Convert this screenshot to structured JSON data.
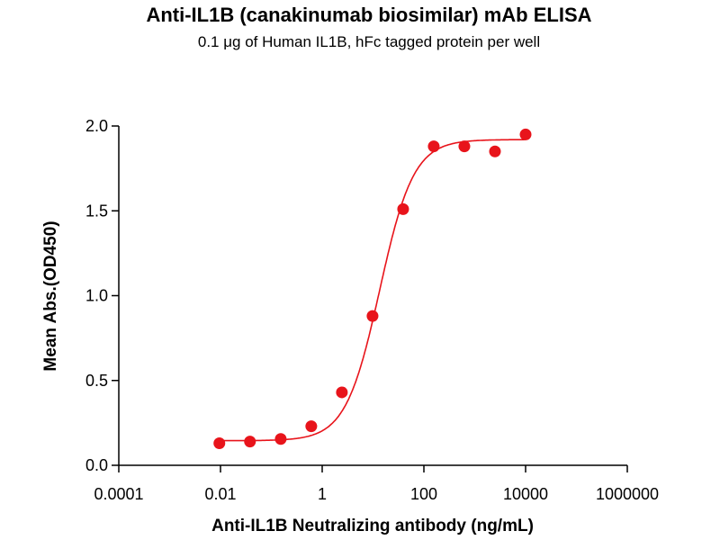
{
  "chart_data": {
    "type": "scatter",
    "title": "Anti-IL1B (canakinumab biosimilar) mAb ELISA",
    "subtitle": "0.1 μg of Human IL1B, hFc tagged protein per well",
    "xlabel": "Anti-IL1B Neutralizing antibody (ng/mL)",
    "ylabel": "Mean Abs.(OD450)",
    "xscale": "log",
    "xlim": [
      0.0001,
      1000000
    ],
    "ylim": [
      0,
      2.0
    ],
    "xticks": [
      0.0001,
      0.01,
      1,
      100,
      10000,
      1000000
    ],
    "xtick_labels": [
      "0.0001",
      "0.01",
      "1",
      "100",
      "10000",
      "1000000"
    ],
    "yticks": [
      0,
      0.5,
      1.0,
      1.5,
      2.0
    ],
    "ytick_labels": [
      "0.0",
      "0.5",
      "1.0",
      "1.5",
      "2.0"
    ],
    "grid": false,
    "color": "#e8141b",
    "x": [
      0.0095,
      0.038,
      0.153,
      0.61,
      2.44,
      9.77,
      39.06,
      156.25,
      625,
      2500,
      10000
    ],
    "y": [
      0.13,
      0.14,
      0.155,
      0.23,
      0.43,
      0.88,
      1.51,
      1.88,
      1.88,
      1.85,
      1.95
    ],
    "fit": {
      "model": "4PL",
      "bottom": 0.145,
      "top": 1.92,
      "ec50": 13.5,
      "hill": 1.3
    }
  }
}
